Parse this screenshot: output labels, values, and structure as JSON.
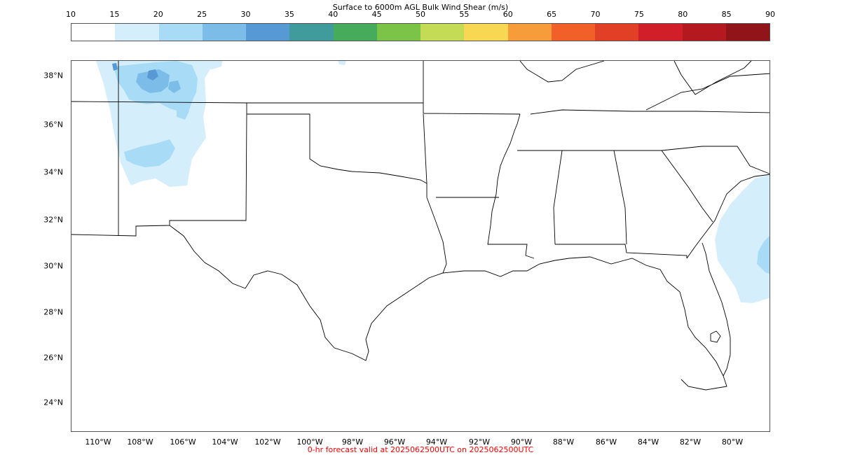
{
  "colorbar": {
    "title": "Surface to 6000m AGL Bulk Wind Shear (m/s)",
    "ticks": [
      "10",
      "15",
      "20",
      "25",
      "30",
      "35",
      "40",
      "45",
      "50",
      "55",
      "60",
      "65",
      "70",
      "75",
      "80",
      "85",
      "90"
    ],
    "colors": [
      "#ffffff",
      "#d4eefb",
      "#a8dcf6",
      "#7bbde8",
      "#5699d5",
      "#409c9c",
      "#47ab5c",
      "#7bc447",
      "#c4dc55",
      "#f8d753",
      "#f79c3a",
      "#f2602a",
      "#e13f26",
      "#d11f2a",
      "#b3191f",
      "#911419"
    ]
  },
  "map": {
    "lat_labels": [
      "38°N",
      "36°N",
      "34°N",
      "32°N",
      "30°N",
      "28°N",
      "26°N",
      "24°N"
    ],
    "lon_labels": [
      "110°W",
      "108°W",
      "106°W",
      "104°W",
      "102°W",
      "100°W",
      "98°W",
      "96°W",
      "94°W",
      "92°W",
      "90°W",
      "88°W",
      "86°W",
      "84°W",
      "82°W",
      "80°W"
    ],
    "shading_colors": {
      "light": "#d4eefb",
      "medium": "#a8dcf6",
      "strong": "#7bbde8",
      "deep": "#5699d5"
    }
  },
  "footer": "0-hr forecast valid at 2025062500UTC on 2025062500UTC"
}
